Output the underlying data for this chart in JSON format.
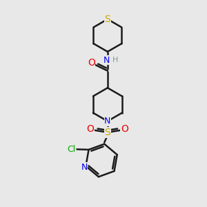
{
  "bg_color": "#e8e8e8",
  "bond_color": "#1a1a1a",
  "S_color": "#ccaa00",
  "N_color": "#0000ee",
  "O_color": "#ee0000",
  "Cl_color": "#00aa00",
  "H_color": "#7a9a9a",
  "lw": 1.8,
  "figsize": [
    3.0,
    3.0
  ],
  "dpi": 100,
  "xlim": [
    0,
    10
  ],
  "ylim": [
    0,
    10
  ]
}
